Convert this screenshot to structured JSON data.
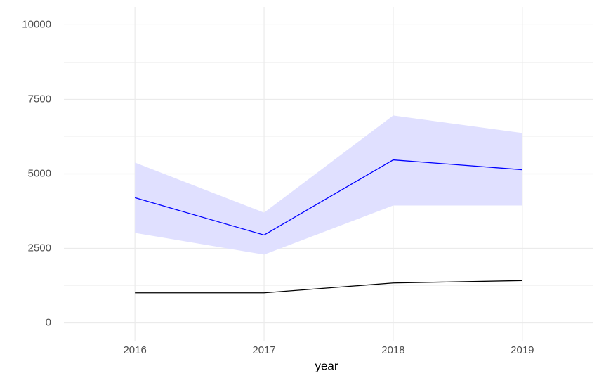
{
  "chart_data": {
    "type": "line",
    "x_label": "year",
    "x": [
      2016,
      2017,
      2018,
      2019
    ],
    "xlim": [
      2015.45,
      2019.55
    ],
    "xticks": [
      2016,
      2017,
      2018,
      2019
    ],
    "ylim": [
      -600,
      10600
    ],
    "yticks": [
      0,
      2500,
      5000,
      7500,
      10000
    ],
    "minor_yticks": [
      1250,
      3750,
      6250,
      8750
    ],
    "grid": true,
    "series": [
      {
        "color": "#0000ff",
        "fill": "#e0e0ff",
        "values": [
          4200,
          2950,
          5470,
          5140
        ],
        "lower": [
          3020,
          2290,
          3940,
          3940
        ],
        "upper": [
          5380,
          3700,
          6960,
          6370
        ]
      },
      {
        "color": "#000000",
        "values": [
          1010,
          1010,
          1340,
          1420
        ]
      }
    ]
  }
}
